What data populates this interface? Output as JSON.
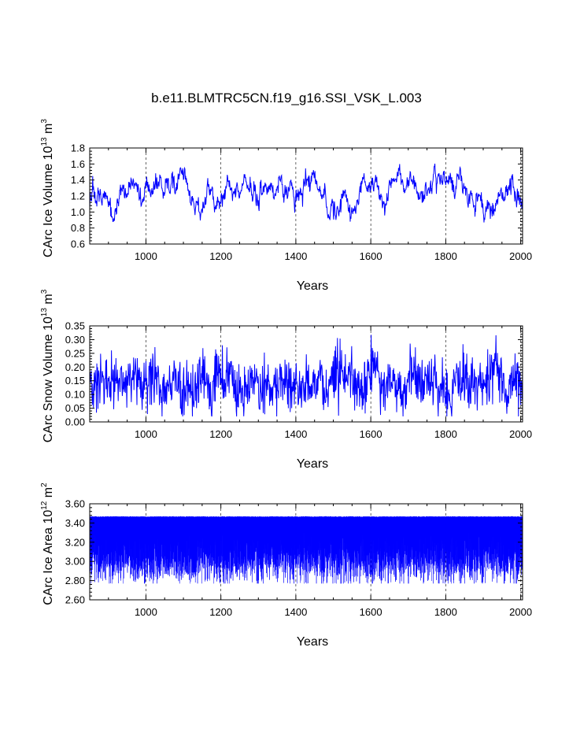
{
  "title": "b.e11.BLMTRC5CN.f19_g16.SSI_VSK_L.003",
  "series_color": "#0000ff",
  "chart_data": [
    {
      "type": "line",
      "id": "ice-volume",
      "title": "b.e11.BLMTRC5CN.f19_g16.SSI_VSK_L.003",
      "xlabel": "Years",
      "ylabel": {
        "main": "CArc Ice Volume 10",
        "exp": "13",
        "unit": " m",
        "unit_exp": "3"
      },
      "xlim": [
        850,
        2005
      ],
      "ylim": [
        0.6,
        1.8
      ],
      "xticks": [
        1000,
        1200,
        1400,
        1600,
        1800,
        2000
      ],
      "xtick_labels": [
        "1000",
        "1200",
        "1400",
        "1600",
        "1800",
        "2000"
      ],
      "yticks": [
        0.6,
        0.8,
        1.0,
        1.2,
        1.4,
        1.6,
        1.8
      ],
      "ytick_labels": [
        "0.6",
        "0.8",
        "1.0",
        "1.2",
        "1.4",
        "1.6",
        "1.8"
      ],
      "gridlines_x": [
        1000,
        1200,
        1400,
        1600,
        1800,
        2000
      ],
      "series": {
        "name": "CArc Ice Volume",
        "x_start": 850,
        "x_end": 2005,
        "n_points": 1156,
        "mean": 1.28,
        "min": 0.82,
        "max": 1.63
      }
    },
    {
      "type": "line",
      "id": "snow-volume",
      "xlabel": "Years",
      "ylabel": {
        "main": "CArc Snow Volume 10",
        "exp": "13",
        "unit": " m",
        "unit_exp": "3"
      },
      "xlim": [
        850,
        2005
      ],
      "ylim": [
        0.0,
        0.35
      ],
      "xticks": [
        1000,
        1200,
        1400,
        1600,
        1800,
        2000
      ],
      "xtick_labels": [
        "1000",
        "1200",
        "1400",
        "1600",
        "1800",
        "2000"
      ],
      "yticks": [
        0.0,
        0.05,
        0.1,
        0.15,
        0.2,
        0.25,
        0.3,
        0.35
      ],
      "ytick_labels": [
        "0.00",
        "0.05",
        "0.10",
        "0.15",
        "0.20",
        "0.25",
        "0.30",
        "0.35"
      ],
      "gridlines_x": [
        1000,
        1200,
        1400,
        1600,
        1800,
        2000
      ],
      "series": {
        "name": "CArc Snow Volume",
        "x_start": 850,
        "x_end": 2005,
        "n_points": 1156,
        "mean": 0.14,
        "min": 0.02,
        "max": 0.32
      }
    },
    {
      "type": "line",
      "id": "ice-area",
      "xlabel": "Years",
      "ylabel": {
        "main": "CArc Ice Area 10",
        "exp": "12",
        "unit": " m",
        "unit_exp": "2"
      },
      "xlim": [
        850,
        2005
      ],
      "ylim": [
        2.6,
        3.6
      ],
      "xticks": [
        1000,
        1200,
        1400,
        1600,
        1800,
        2000
      ],
      "xtick_labels": [
        "1000",
        "1200",
        "1400",
        "1600",
        "1800",
        "2000"
      ],
      "yticks": [
        2.6,
        2.8,
        3.0,
        3.2,
        3.4,
        3.6
      ],
      "ytick_labels": [
        "2.60",
        "2.80",
        "3.00",
        "3.20",
        "3.40",
        "3.60"
      ],
      "gridlines_x": [
        1000,
        1200,
        1400,
        1600,
        1800,
        2000
      ],
      "series": {
        "name": "CArc Ice Area",
        "x_start": 850,
        "x_end": 2005,
        "n_points": 4620,
        "upper": 3.47,
        "lower_typical": 3.0,
        "min": 2.77
      }
    }
  ]
}
